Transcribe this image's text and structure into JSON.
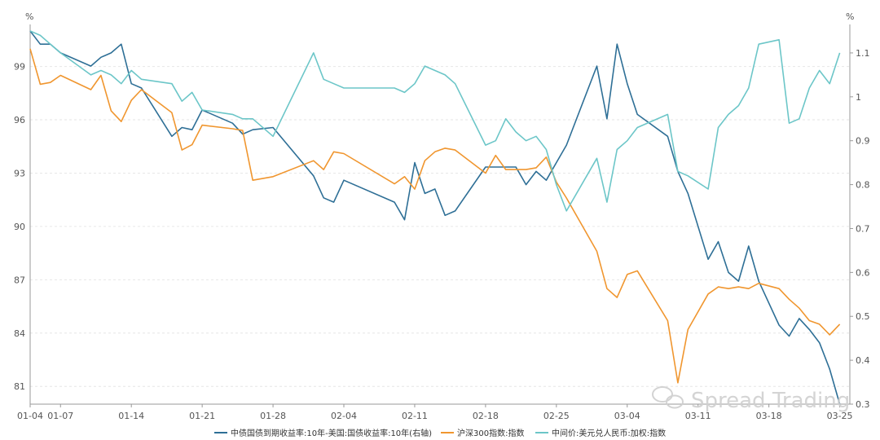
{
  "chart_data": {
    "type": "line",
    "left_unit": "%",
    "right_unit": "%",
    "left_axis": {
      "min": 80,
      "max": 101,
      "ticks": [
        81,
        84,
        87,
        90,
        93,
        96,
        99
      ]
    },
    "right_axis": {
      "min": 0.3,
      "max": 1.15,
      "ticks": [
        0.3,
        0.4,
        0.5,
        0.6,
        0.7,
        0.8,
        0.9,
        1,
        1.1
      ]
    },
    "x_range": [
      0,
      81
    ],
    "x_ticks": [
      {
        "x": 0,
        "label": "01-04"
      },
      {
        "x": 3,
        "label": "01-07"
      },
      {
        "x": 10,
        "label": "01-14"
      },
      {
        "x": 17,
        "label": "01-21"
      },
      {
        "x": 24,
        "label": "01-28"
      },
      {
        "x": 31,
        "label": "02-04"
      },
      {
        "x": 38,
        "label": "02-11"
      },
      {
        "x": 45,
        "label": "02-18"
      },
      {
        "x": 52,
        "label": "02-25"
      },
      {
        "x": 59,
        "label": "03-04"
      },
      {
        "x": 66,
        "label": "03-11"
      },
      {
        "x": 73,
        "label": "03-18"
      },
      {
        "x": 80,
        "label": "03-25"
      }
    ],
    "grid": true,
    "legend_position": "bottom",
    "series": [
      {
        "name": "中债国债到期收益率:10年-美国:国债收益率:10年(右轴)",
        "axis": "right",
        "color": "#2e6f96",
        "x": [
          0,
          1,
          2,
          3,
          6,
          7,
          8,
          9,
          10,
          11,
          14,
          15,
          16,
          17,
          20,
          21,
          22,
          24,
          28,
          29,
          30,
          31,
          36,
          37,
          38,
          39,
          40,
          41,
          42,
          45,
          46,
          47,
          48,
          49,
          50,
          51,
          52,
          53,
          56,
          57,
          58,
          59,
          60,
          63,
          64,
          65,
          67,
          68,
          69,
          70,
          71,
          72,
          74,
          75,
          76,
          77,
          78,
          79,
          80
        ],
        "y": [
          1.15,
          1.12,
          1.12,
          1.1,
          1.07,
          1.09,
          1.1,
          1.12,
          1.03,
          1.02,
          0.91,
          0.93,
          0.925,
          0.97,
          0.94,
          0.915,
          0.925,
          0.93,
          0.82,
          0.77,
          0.76,
          0.81,
          0.76,
          0.72,
          0.85,
          0.78,
          0.79,
          0.73,
          0.74,
          0.84,
          0.84,
          0.84,
          0.84,
          0.8,
          0.83,
          0.81,
          0.85,
          0.89,
          1.07,
          0.95,
          1.12,
          1.03,
          0.96,
          0.91,
          0.83,
          0.78,
          0.63,
          0.67,
          0.6,
          0.58,
          0.66,
          0.58,
          0.48,
          0.455,
          0.495,
          0.47,
          0.44,
          0.38,
          0.3
        ]
      },
      {
        "name": "沪深300指数:指数",
        "axis": "left",
        "color": "#f0962f",
        "x": [
          0,
          1,
          2,
          3,
          6,
          7,
          8,
          9,
          10,
          11,
          14,
          15,
          16,
          17,
          20,
          21,
          22,
          24,
          28,
          29,
          30,
          31,
          36,
          37,
          38,
          39,
          40,
          41,
          42,
          45,
          46,
          47,
          48,
          49,
          50,
          51,
          52,
          53,
          56,
          57,
          58,
          59,
          60,
          63,
          64,
          65,
          67,
          68,
          69,
          70,
          71,
          72,
          74,
          75,
          76,
          77,
          78,
          79,
          80
        ],
        "y": [
          100,
          98,
          98.1,
          98.5,
          97.7,
          98.5,
          96.5,
          95.9,
          97.1,
          97.7,
          96.4,
          94.3,
          94.6,
          95.7,
          95.5,
          95.4,
          92.6,
          92.8,
          93.7,
          93.2,
          94.2,
          94.1,
          92.4,
          92.8,
          92.1,
          93.7,
          94.2,
          94.4,
          94.3,
          93.0,
          94.0,
          93.2,
          93.2,
          93.2,
          93.3,
          93.9,
          92.5,
          91.6,
          88.6,
          86.5,
          86.0,
          87.3,
          87.5,
          84.7,
          81.2,
          84.2,
          86.2,
          86.6,
          86.5,
          86.6,
          86.5,
          86.8,
          86.5,
          85.9,
          85.4,
          84.7,
          84.5,
          83.9,
          84.5
        ]
      },
      {
        "name": "中间价:美元兑人民币:加权:指数",
        "axis": "right",
        "color": "#6cc6c8",
        "x": [
          0,
          1,
          2,
          3,
          6,
          7,
          8,
          9,
          10,
          11,
          14,
          15,
          16,
          17,
          20,
          21,
          22,
          24,
          28,
          29,
          30,
          31,
          36,
          37,
          38,
          39,
          40,
          41,
          42,
          45,
          46,
          47,
          48,
          49,
          50,
          51,
          52,
          53,
          56,
          57,
          58,
          59,
          60,
          63,
          64,
          65,
          67,
          68,
          69,
          70,
          71,
          72,
          74,
          75,
          76,
          77,
          78,
          79,
          80
        ],
        "y": [
          1.15,
          1.14,
          1.12,
          1.1,
          1.05,
          1.06,
          1.05,
          1.03,
          1.06,
          1.04,
          1.03,
          0.99,
          1.01,
          0.97,
          0.96,
          0.95,
          0.95,
          0.91,
          1.1,
          1.04,
          1.03,
          1.02,
          1.02,
          1.01,
          1.03,
          1.07,
          1.06,
          1.05,
          1.03,
          0.89,
          0.9,
          0.95,
          0.92,
          0.9,
          0.91,
          0.88,
          0.8,
          0.74,
          0.86,
          0.76,
          0.88,
          0.9,
          0.93,
          0.96,
          0.83,
          0.82,
          0.79,
          0.93,
          0.96,
          0.98,
          1.02,
          1.12,
          1.13,
          0.94,
          0.95,
          1.02,
          1.06,
          1.03,
          1.1
        ]
      }
    ]
  },
  "watermark": "Spread Trading"
}
